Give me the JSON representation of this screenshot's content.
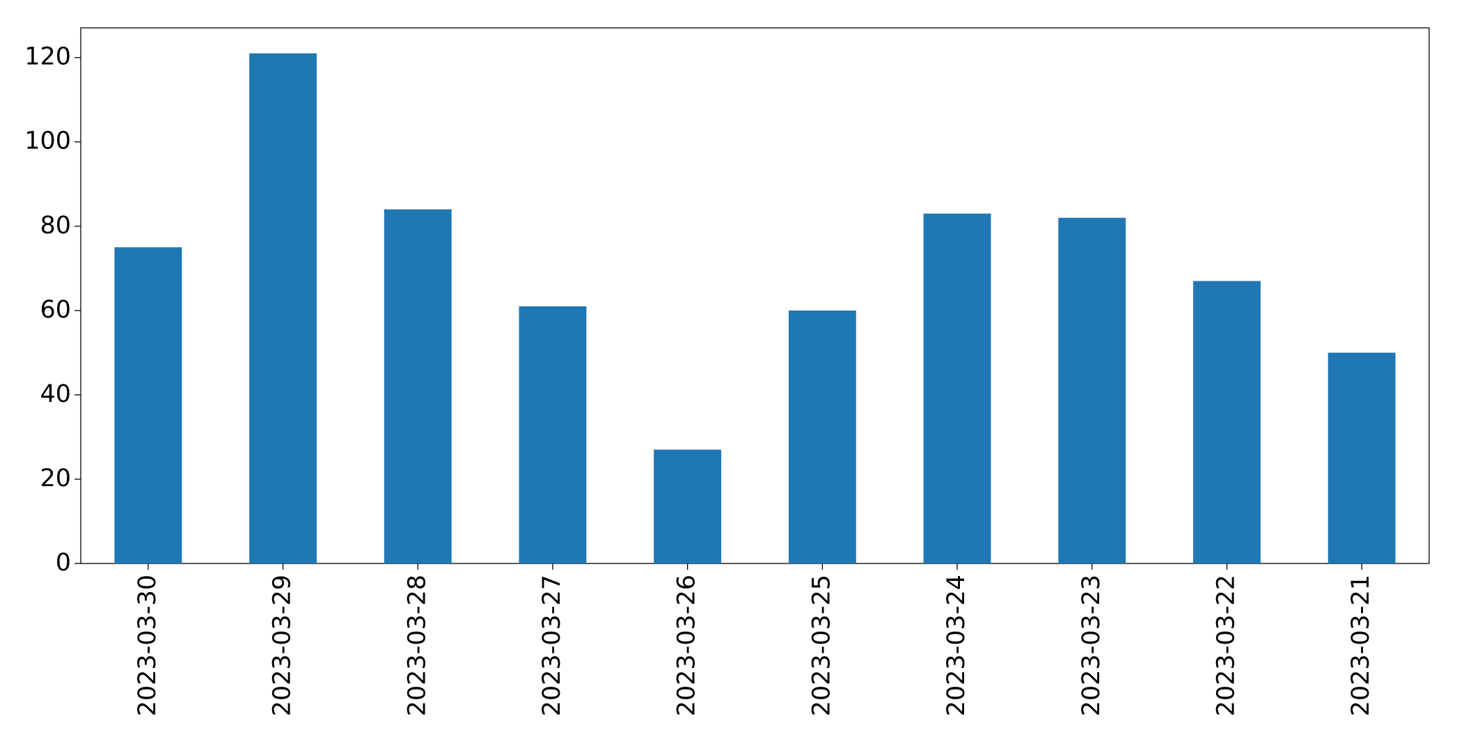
{
  "chart_data": {
    "type": "bar",
    "categories": [
      "2023-03-30",
      "2023-03-29",
      "2023-03-28",
      "2023-03-27",
      "2023-03-26",
      "2023-03-25",
      "2023-03-24",
      "2023-03-23",
      "2023-03-22",
      "2023-03-21"
    ],
    "values": [
      75,
      121,
      84,
      61,
      27,
      60,
      83,
      82,
      67,
      50
    ],
    "color": "#1f77b4",
    "ylim": [
      0,
      127.05
    ],
    "yticks": [
      0,
      20,
      40,
      60,
      80,
      100,
      120
    ],
    "grid": false
  }
}
